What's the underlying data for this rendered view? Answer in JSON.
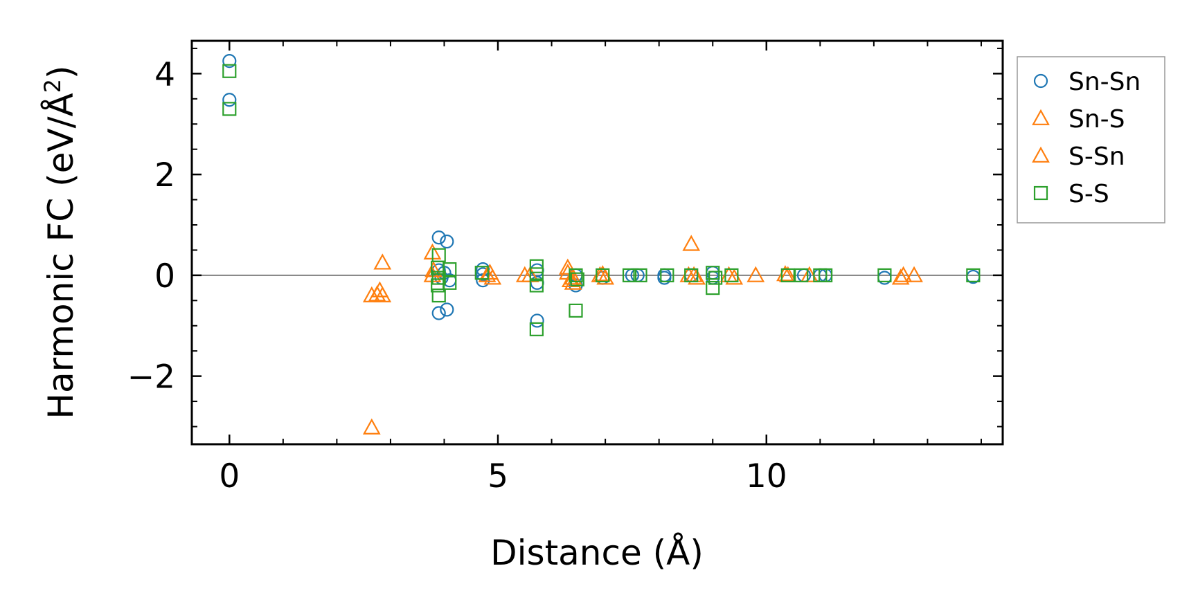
{
  "chart_data": {
    "type": "scatter",
    "xlabel": "Distance (Å)",
    "ylabel": "Harmonic FC (eV/Å",
    "ylabel_sup": "2",
    "ylabel_close": ")",
    "xlim": [
      -0.7,
      14.4
    ],
    "ylim": [
      -3.35,
      4.65
    ],
    "x_ticks": [
      0,
      5,
      10
    ],
    "x_tick_labels": [
      "0",
      "5",
      "10"
    ],
    "y_ticks": [
      -2,
      0,
      2,
      4
    ],
    "y_tick_labels": [
      "−2",
      "0",
      "2",
      "4"
    ],
    "zero_line": true,
    "grid": false,
    "legend_position": "outside-right-top",
    "series": [
      {
        "name": "Sn-Sn",
        "marker": "circle",
        "color": "#1f77b4",
        "points": [
          [
            0,
            4.25
          ],
          [
            0,
            3.48
          ],
          [
            3.9,
            0.75
          ],
          [
            4.05,
            0.67
          ],
          [
            3.9,
            0.1
          ],
          [
            4.0,
            0.05
          ],
          [
            3.95,
            -0.05
          ],
          [
            4.1,
            -0.1
          ],
          [
            3.9,
            -0.75
          ],
          [
            4.05,
            -0.68
          ],
          [
            4.72,
            0.12
          ],
          [
            4.72,
            0.02
          ],
          [
            4.72,
            -0.1
          ],
          [
            5.73,
            0.1
          ],
          [
            5.73,
            -0.15
          ],
          [
            5.73,
            -0.9
          ],
          [
            6.45,
            0.0
          ],
          [
            6.45,
            -0.2
          ],
          [
            6.95,
            -0.05
          ],
          [
            7.5,
            0.0
          ],
          [
            7.6,
            0.0
          ],
          [
            8.1,
            0.0
          ],
          [
            8.1,
            -0.05
          ],
          [
            8.6,
            0.0
          ],
          [
            9.0,
            0.05
          ],
          [
            9.0,
            -0.05
          ],
          [
            10.7,
            0.0
          ],
          [
            11.0,
            0.0
          ],
          [
            11.1,
            0.0
          ],
          [
            12.2,
            -0.05
          ],
          [
            13.85,
            -0.03
          ]
        ]
      },
      {
        "name": "Sn-S",
        "marker": "triangle",
        "color": "#ff7f0e",
        "points": [
          [
            2.65,
            -0.4
          ],
          [
            2.8,
            -0.3
          ],
          [
            2.85,
            -0.4
          ],
          [
            2.85,
            0.25
          ],
          [
            3.78,
            0.45
          ],
          [
            3.78,
            0.0
          ],
          [
            4.8,
            0.0
          ],
          [
            4.9,
            -0.05
          ],
          [
            5.5,
            0.0
          ],
          [
            6.3,
            0.15
          ],
          [
            6.35,
            -0.1
          ],
          [
            6.4,
            -0.15
          ],
          [
            6.9,
            0.0
          ],
          [
            7.0,
            -0.05
          ],
          [
            8.55,
            0.0
          ],
          [
            8.7,
            -0.05
          ],
          [
            9.3,
            0.0
          ],
          [
            9.8,
            0.0
          ],
          [
            10.4,
            0.0
          ],
          [
            10.8,
            0.0
          ],
          [
            12.5,
            -0.05
          ],
          [
            12.75,
            0.0
          ]
        ]
      },
      {
        "name": "S-Sn",
        "marker": "triangle",
        "color": "#ff7f0e",
        "points": [
          [
            2.65,
            -3.02
          ],
          [
            2.75,
            -0.38
          ],
          [
            3.8,
            0.1
          ],
          [
            4.85,
            0.05
          ],
          [
            5.6,
            0.0
          ],
          [
            6.3,
            0.05
          ],
          [
            6.4,
            -0.05
          ],
          [
            6.95,
            0.02
          ],
          [
            8.6,
            0.62
          ],
          [
            8.65,
            0.0
          ],
          [
            9.4,
            -0.05
          ],
          [
            10.35,
            0.02
          ],
          [
            12.55,
            0.0
          ]
        ]
      },
      {
        "name": "S-S",
        "marker": "square",
        "color": "#2ca02c",
        "points": [
          [
            0,
            4.05
          ],
          [
            0,
            3.3
          ],
          [
            3.9,
            0.4
          ],
          [
            3.88,
            0.15
          ],
          [
            3.9,
            -0.05
          ],
          [
            3.88,
            -0.2
          ],
          [
            3.9,
            -0.4
          ],
          [
            4.1,
            0.12
          ],
          [
            4.1,
            -0.15
          ],
          [
            4.7,
            0.05
          ],
          [
            5.72,
            0.18
          ],
          [
            5.72,
            0.02
          ],
          [
            5.72,
            -0.2
          ],
          [
            5.72,
            -1.07
          ],
          [
            6.45,
            -0.7
          ],
          [
            6.45,
            0.0
          ],
          [
            6.48,
            -0.08
          ],
          [
            6.95,
            0.0
          ],
          [
            7.45,
            0.0
          ],
          [
            7.65,
            0.0
          ],
          [
            8.15,
            0.0
          ],
          [
            8.6,
            0.0
          ],
          [
            9.0,
            0.05
          ],
          [
            9.0,
            -0.25
          ],
          [
            9.05,
            -0.05
          ],
          [
            9.35,
            0.0
          ],
          [
            10.4,
            0.0
          ],
          [
            10.65,
            0.0
          ],
          [
            11.0,
            0.0
          ],
          [
            11.1,
            0.0
          ],
          [
            12.2,
            0.0
          ],
          [
            13.85,
            0.0
          ]
        ]
      }
    ]
  }
}
